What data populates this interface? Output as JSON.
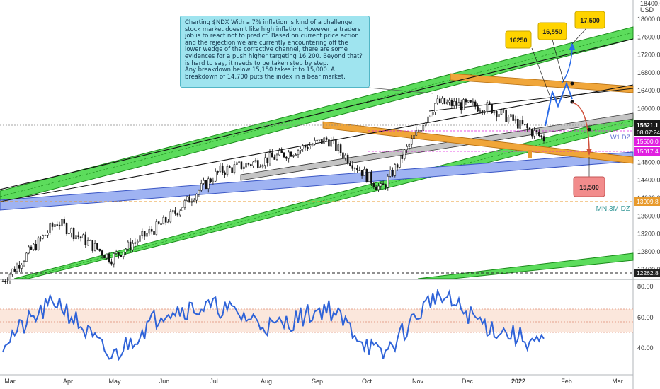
{
  "annotation": {
    "text": "Charting $NDX With a 7% inflation is kind of a challenge, stock market doesn't like high inflation. However, a traders job is to react not to predict. Based on current price action and the rejection we are currently encountering off the lower wedge of the corrective channel, there are some evidences for a push higher targeting 16,200. Beyond that? is hard to say, it needs to be taken step by step.\nAny breakdown below 15,150 takes it to 15,000. A breakdown of 14,700 puts the index in a bear market."
  },
  "callouts": {
    "c16250": "16250",
    "c16550": "16,550",
    "c17500": "17,500",
    "c15500": "15,500"
  },
  "zone_labels": {
    "w1dz": "W1 DZ",
    "mn3mdz": "MN,3M DZ"
  },
  "price_axis": {
    "currency_top": "18400.0",
    "currency_unit": "USD",
    "ticks": [
      "18000.0",
      "17600.0",
      "17200.0",
      "16800.0",
      "16400.0",
      "16000.0",
      "15600.0",
      "15200.0",
      "14800.0",
      "14400.0",
      "14000.0",
      "13600.0",
      "13200.0",
      "12800.0",
      "12400.0"
    ],
    "badges": {
      "last_price": "15621.1",
      "countdown": "08:07:24",
      "level_15500": "15500.0",
      "level_15017": "15017.4",
      "level_13909": "13909.8",
      "level_12262": "12262.8"
    },
    "colors": {
      "last": "#1a1a1a",
      "magenta": "#e020e0",
      "orange": "#e89a2c",
      "black": "#222222"
    }
  },
  "rsi_axis": {
    "ticks": [
      "80.00",
      "60.00",
      "40.00"
    ]
  },
  "time_axis": {
    "labels": [
      "Mar",
      "Apr",
      "May",
      "Jun",
      "Jul",
      "Aug",
      "Sep",
      "Oct",
      "Nov",
      "Dec",
      "2022",
      "Feb",
      "Mar"
    ]
  },
  "chart_data": {
    "type": "line",
    "title": "",
    "price_range": [
      12400,
      18400
    ],
    "rsi_range": [
      20,
      90
    ],
    "rsi_band": [
      50,
      65
    ],
    "x": [
      "2021-03",
      "2021-04",
      "2021-05",
      "2021-06",
      "2021-07",
      "2021-08",
      "2021-09",
      "2021-10",
      "2021-11",
      "2021-12",
      "2022-01"
    ],
    "series": [
      {
        "values": [
          12500,
          13800,
          13000,
          13800,
          14900,
          15200,
          15600,
          14500,
          16400,
          16300,
          15621
        ]
      },
      {
        "values": [
          44,
          75,
          32,
          68,
          70,
          55,
          70,
          33,
          80,
          55,
          42
        ]
      }
    ],
    "levels": [
      15500.0,
      15017.4,
      13909.8,
      12262.8
    ],
    "targets": [
      16250,
      16550,
      17500,
      15500
    ]
  }
}
